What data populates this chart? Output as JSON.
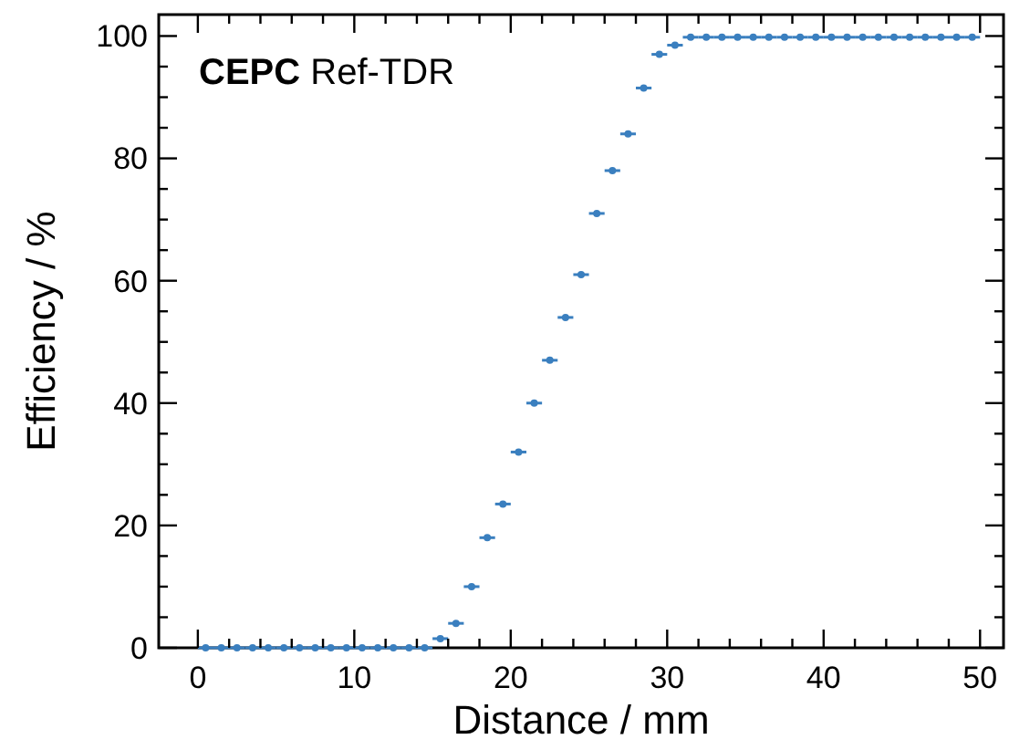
{
  "chart_data": {
    "type": "scatter",
    "xlabel": "Distance / mm",
    "ylabel": "Efficiency / %",
    "annotations": [
      "CEPC Ref-TDR"
    ],
    "x": [
      0.5,
      1.5,
      2.5,
      3.5,
      4.5,
      5.5,
      6.5,
      7.5,
      8.5,
      9.5,
      10.5,
      11.5,
      12.5,
      13.5,
      14.5,
      15.5,
      16.5,
      17.5,
      18.5,
      19.5,
      20.5,
      21.5,
      22.5,
      23.5,
      24.5,
      25.5,
      26.5,
      27.5,
      28.5,
      29.5,
      30.5,
      31.5,
      32.5,
      33.5,
      34.5,
      35.5,
      36.5,
      37.5,
      38.5,
      39.5,
      40.5,
      41.5,
      42.5,
      43.5,
      44.5,
      45.5,
      46.5,
      47.5,
      48.5,
      49.5
    ],
    "series": [
      {
        "color": "#3a7fbf",
        "values": [
          0,
          0,
          0,
          0,
          0,
          0,
          0,
          0,
          0,
          0,
          0,
          0,
          0,
          0,
          0,
          1.5,
          4,
          10,
          18,
          23.5,
          32,
          40,
          47,
          54,
          61,
          71,
          78,
          84,
          91.5,
          97,
          98.5,
          99.8,
          99.8,
          99.8,
          99.8,
          99.8,
          99.8,
          99.8,
          99.8,
          99.8,
          99.8,
          99.8,
          99.8,
          99.8,
          99.8,
          99.8,
          99.8,
          99.8,
          99.8,
          99.8
        ],
        "xerrors": [
          0.5,
          0.5,
          0.5,
          0.5,
          0.5,
          0.5,
          0.5,
          0.5,
          0.5,
          0.5,
          0.5,
          0.5,
          0.5,
          0.5,
          0.5,
          0.5,
          0.5,
          0.5,
          0.5,
          0.5,
          0.5,
          0.5,
          0.5,
          0.5,
          0.5,
          0.5,
          0.5,
          0.5,
          0.5,
          0.5,
          0.5,
          0.5,
          0.5,
          0.5,
          0.5,
          0.5,
          0.5,
          0.5,
          0.5,
          0.5,
          0.5,
          0.5,
          0.5,
          0.5,
          0.5,
          0.5,
          0.5,
          0.5,
          0.5,
          0.5
        ]
      }
    ],
    "marker": "circle",
    "grid": false,
    "xlim": [
      -2.5,
      51.5
    ],
    "ylim": [
      0,
      103.5
    ],
    "xticks": [
      0,
      {
        "value": 2,
        "label": null
      },
      {
        "value": 4,
        "label": null
      },
      {
        "value": 6,
        "label": null
      },
      {
        "value": 8,
        "label": null
      },
      10,
      {
        "value": 12,
        "label": null
      },
      {
        "value": 14,
        "label": null
      },
      {
        "value": 16,
        "label": null
      },
      {
        "value": 18,
        "label": null
      },
      20,
      {
        "value": 22,
        "label": null
      },
      {
        "value": 24,
        "label": null
      },
      {
        "value": 26,
        "label": null
      },
      {
        "value": 28,
        "label": null
      },
      30,
      {
        "value": 32,
        "label": null
      },
      {
        "value": 34,
        "label": null
      },
      {
        "value": 36,
        "label": null
      },
      {
        "value": 38,
        "label": null
      },
      40,
      {
        "value": 42,
        "label": null
      },
      {
        "value": 44,
        "label": null
      },
      {
        "value": 46,
        "label": null
      },
      {
        "value": 48,
        "label": null
      },
      50
    ],
    "yticks": [
      0,
      {
        "value": 5,
        "label": null
      },
      {
        "value": 10,
        "label": null
      },
      {
        "value": 15,
        "label": null
      },
      20,
      {
        "value": 25,
        "label": null
      },
      {
        "value": 30,
        "label": null
      },
      {
        "value": 35,
        "label": null
      },
      40,
      {
        "value": 45,
        "label": null
      },
      {
        "value": 50,
        "label": null
      },
      {
        "value": 55,
        "label": null
      },
      60,
      {
        "value": 65,
        "label": null
      },
      {
        "value": 70,
        "label": null
      },
      {
        "value": 75,
        "label": null
      },
      80,
      {
        "value": 85,
        "label": null
      },
      {
        "value": 90,
        "label": null
      },
      {
        "value": 95,
        "label": null
      },
      100
    ]
  }
}
